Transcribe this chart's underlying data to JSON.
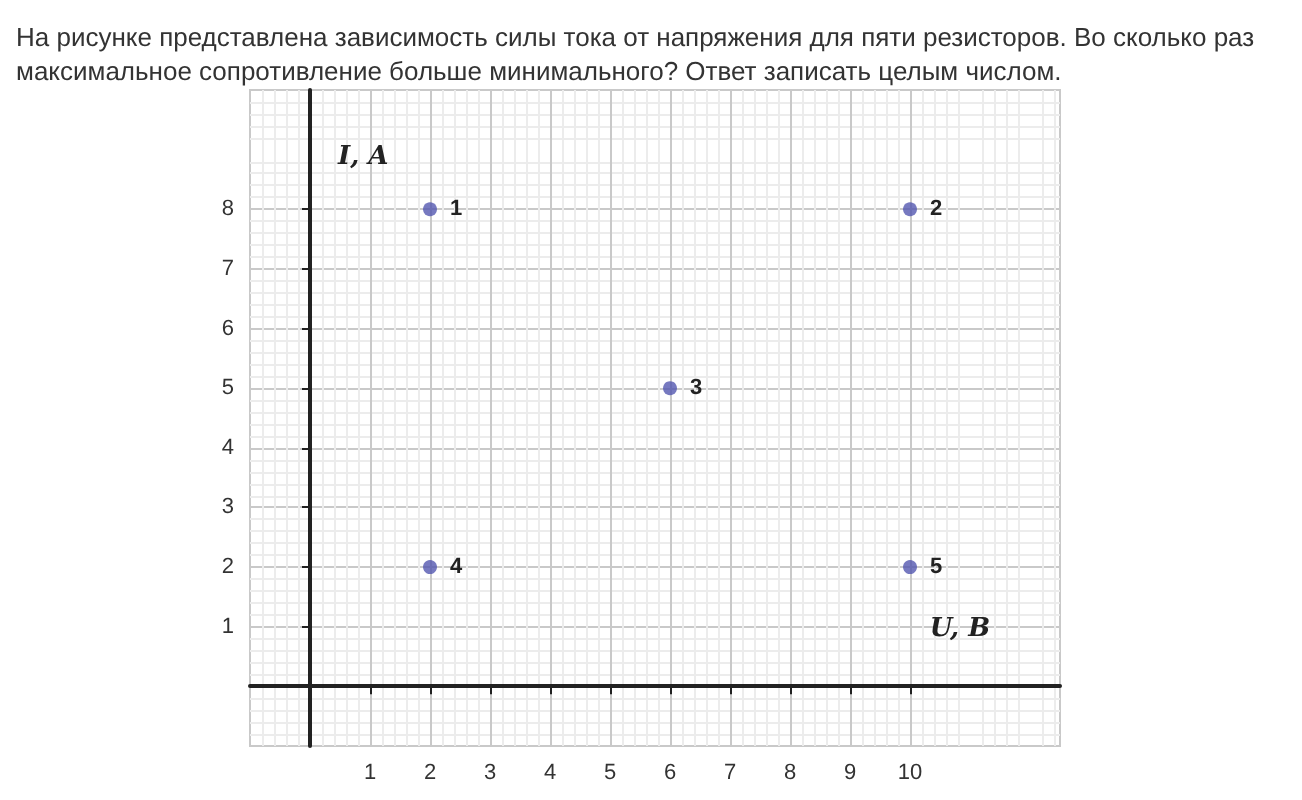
{
  "chart_data": {
    "type": "scatter",
    "title": "На рисунке представлена зависимость силы тока от напряжения для пяти резисторов. Во сколько раз максимальное сопротивление больше минимального? Ответ записать целым числом.",
    "xlabel": "U, B",
    "ylabel": "I, A",
    "x": [
      2,
      10,
      6,
      2,
      10
    ],
    "values": [
      8,
      8,
      5,
      2,
      2
    ],
    "color": "#5458b0",
    "marker": "circle",
    "xlim": [
      -1,
      12.5
    ],
    "ylim": [
      -1,
      10
    ],
    "xticks": [
      1,
      2,
      3,
      4,
      5,
      6,
      7,
      8,
      9,
      10
    ],
    "yticks": [
      1,
      2,
      3,
      4,
      5,
      6,
      7,
      8
    ],
    "grid": true,
    "annotations": [
      {
        "text": "1",
        "x": 2,
        "y": 8
      },
      {
        "text": "2",
        "x": 10,
        "y": 8
      },
      {
        "text": "3",
        "x": 6,
        "y": 5
      },
      {
        "text": "4",
        "x": 2,
        "y": 2
      },
      {
        "text": "5",
        "x": 10,
        "y": 2
      }
    ]
  }
}
